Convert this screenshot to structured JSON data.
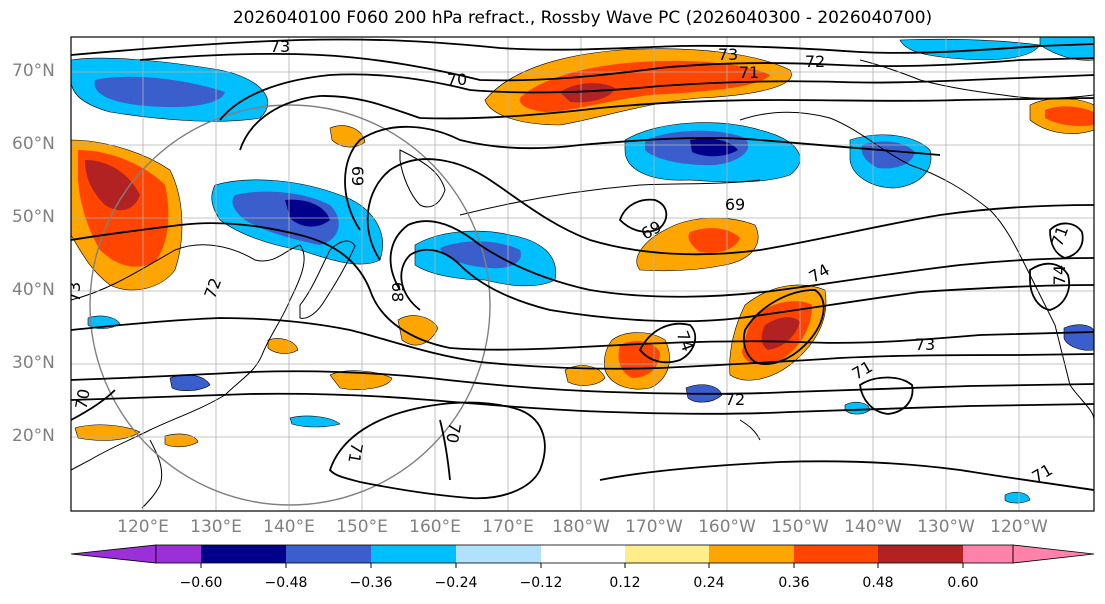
{
  "title": "2026040100 F060 200 hPa refract., Rossby Wave PC (2026040300 - 2026040700)",
  "lat_labels": [
    "70°N",
    "60°N",
    "50°N",
    "40°N",
    "30°N",
    "20°N"
  ],
  "lon_labels": [
    "120°E",
    "130°E",
    "140°E",
    "150°E",
    "160°E",
    "170°E",
    "180°W",
    "170°W",
    "160°W",
    "150°W",
    "140°W",
    "130°W",
    "120°W"
  ],
  "colorbar": {
    "ticks": [
      "−0.60",
      "−0.48",
      "−0.36",
      "−0.24",
      "−0.12",
      "0.12",
      "0.24",
      "0.36",
      "0.48",
      "0.60"
    ],
    "colors": [
      "#9b30d9",
      "#00008b",
      "#3a5fcd",
      "#00bfff",
      "#b0e2ff",
      "#ffffff",
      "#ffec8b",
      "#ffa500",
      "#ff4500",
      "#b22222",
      "#ff82ab"
    ]
  },
  "contour_labels": [
    "73",
    "72",
    "71",
    "70",
    "69",
    "69",
    "69",
    "68",
    "74",
    "74",
    "73",
    "72",
    "71",
    "70",
    "70",
    "71",
    "71",
    "73",
    "73",
    "71",
    "72",
    "74"
  ]
}
